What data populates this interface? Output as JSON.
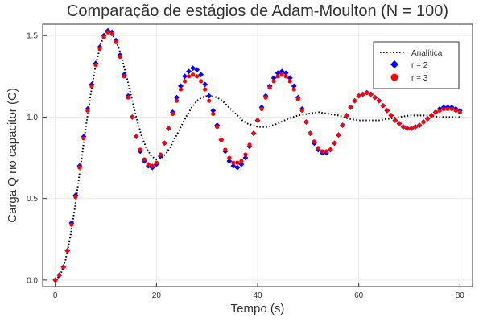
{
  "chart_data": {
    "type": "scatter",
    "title": "Comparação de estágios de Adam-Moulton (N = 100)",
    "xlabel": "Tempo (s)",
    "ylabel": "Carga Q no capacitor (C)",
    "xlim": [
      -2.5,
      82.5
    ],
    "ylim": [
      -0.04,
      1.57
    ],
    "xticks": [
      0,
      20,
      40,
      60,
      80
    ],
    "xtick_labels": [
      "0",
      "20",
      "40",
      "60",
      "80"
    ],
    "yticks": [
      0.0,
      0.5,
      1.0,
      1.5
    ],
    "ytick_labels": [
      "0.0",
      "0.5",
      "1.0",
      "1.5"
    ],
    "grid": true,
    "legend_position": "top-right",
    "series": [
      {
        "name": "Analítica",
        "style": "dotted-line",
        "color": "#000000",
        "x": [
          0,
          1,
          2,
          3,
          4,
          5,
          6,
          7,
          8,
          9,
          10,
          11,
          12,
          13,
          14,
          15,
          16,
          17,
          18,
          19,
          20,
          21,
          22,
          23,
          24,
          25,
          26,
          27,
          28,
          29,
          30,
          31,
          32,
          33,
          34,
          35,
          36,
          37,
          38,
          39,
          40,
          42,
          44,
          46,
          48,
          50,
          52,
          54,
          56,
          58,
          60,
          62,
          64,
          66,
          68,
          70,
          72,
          74,
          76,
          78,
          80
        ],
        "y": [
          0.0,
          0.03,
          0.12,
          0.27,
          0.47,
          0.7,
          0.93,
          1.14,
          1.32,
          1.45,
          1.52,
          1.52,
          1.47,
          1.38,
          1.26,
          1.13,
          1.0,
          0.89,
          0.81,
          0.76,
          0.74,
          0.75,
          0.78,
          0.83,
          0.89,
          0.95,
          1.01,
          1.06,
          1.1,
          1.12,
          1.13,
          1.13,
          1.12,
          1.1,
          1.07,
          1.04,
          1.01,
          0.98,
          0.96,
          0.95,
          0.94,
          0.94,
          0.96,
          0.99,
          1.01,
          1.02,
          1.03,
          1.02,
          1.01,
          0.99,
          0.98,
          0.98,
          0.98,
          0.99,
          1.0,
          1.01,
          1.01,
          1.01,
          1.0,
          1.0,
          1.0
        ]
      },
      {
        "name": "r = 2",
        "style": "diamond",
        "color": "#0000ff",
        "x": [
          0,
          0.8,
          1.6,
          2.4,
          3.2,
          4.0,
          4.8,
          5.6,
          6.4,
          7.2,
          8.0,
          8.8,
          9.6,
          10.4,
          11.2,
          12.0,
          12.8,
          13.6,
          14.4,
          15.2,
          16.0,
          16.8,
          17.6,
          18.4,
          19.2,
          20.0,
          20.8,
          21.6,
          22.4,
          23.2,
          24.0,
          24.8,
          25.6,
          26.4,
          27.2,
          28.0,
          28.8,
          29.6,
          30.4,
          31.2,
          32.0,
          32.8,
          33.6,
          34.4,
          35.2,
          36.0,
          36.8,
          37.6,
          38.4,
          39.2,
          40.0,
          40.8,
          41.6,
          42.4,
          43.2,
          44.0,
          44.8,
          45.6,
          46.4,
          47.2,
          48.0,
          48.8,
          49.6,
          50.4,
          51.2,
          52.0,
          52.8,
          53.6,
          54.4,
          55.2,
          56.0,
          56.8,
          57.6,
          58.4,
          59.2,
          60.0,
          60.8,
          61.6,
          62.4,
          63.2,
          64.0,
          64.8,
          65.6,
          66.4,
          67.2,
          68.0,
          68.8,
          69.6,
          70.4,
          71.2,
          72.0,
          72.8,
          73.6,
          74.4,
          75.2,
          76.0,
          76.8,
          77.6,
          78.4,
          79.2,
          80.0
        ],
        "y": [
          0.0,
          0.03,
          0.08,
          0.18,
          0.35,
          0.52,
          0.7,
          0.88,
          1.05,
          1.2,
          1.33,
          1.43,
          1.5,
          1.53,
          1.52,
          1.47,
          1.38,
          1.26,
          1.13,
          1.0,
          0.88,
          0.79,
          0.73,
          0.7,
          0.69,
          0.71,
          0.76,
          0.84,
          0.93,
          1.03,
          1.12,
          1.19,
          1.25,
          1.28,
          1.3,
          1.29,
          1.26,
          1.2,
          1.13,
          1.04,
          0.95,
          0.86,
          0.79,
          0.73,
          0.7,
          0.69,
          0.71,
          0.75,
          0.82,
          0.9,
          0.98,
          1.06,
          1.13,
          1.19,
          1.24,
          1.27,
          1.28,
          1.27,
          1.24,
          1.19,
          1.12,
          1.05,
          0.97,
          0.9,
          0.84,
          0.8,
          0.78,
          0.78,
          0.8,
          0.84,
          0.89,
          0.95,
          1.01,
          1.06,
          1.1,
          1.13,
          1.14,
          1.15,
          1.14,
          1.12,
          1.1,
          1.07,
          1.04,
          1.01,
          0.98,
          0.96,
          0.94,
          0.93,
          0.93,
          0.94,
          0.95,
          0.97,
          0.99,
          1.01,
          1.03,
          1.05,
          1.06,
          1.06,
          1.06,
          1.05,
          1.04
        ]
      },
      {
        "name": "r = 3",
        "style": "circle",
        "color": "#ff0000",
        "x": [
          0,
          0.8,
          1.6,
          2.4,
          3.2,
          4.0,
          4.8,
          5.6,
          6.4,
          7.2,
          8.0,
          8.8,
          9.6,
          10.4,
          11.2,
          12.0,
          12.8,
          13.6,
          14.4,
          15.2,
          16.0,
          16.8,
          17.6,
          18.4,
          19.2,
          20.0,
          20.8,
          21.6,
          22.4,
          23.2,
          24.0,
          24.8,
          25.6,
          26.4,
          27.2,
          28.0,
          28.8,
          29.6,
          30.4,
          31.2,
          32.0,
          32.8,
          33.6,
          34.4,
          35.2,
          36.0,
          36.8,
          37.6,
          38.4,
          39.2,
          40.0,
          40.8,
          41.6,
          42.4,
          43.2,
          44.0,
          44.8,
          45.6,
          46.4,
          47.2,
          48.0,
          48.8,
          49.6,
          50.4,
          51.2,
          52.0,
          52.8,
          53.6,
          54.4,
          55.2,
          56.0,
          56.8,
          57.6,
          58.4,
          59.2,
          60.0,
          60.8,
          61.6,
          62.4,
          63.2,
          64.0,
          64.8,
          65.6,
          66.4,
          67.2,
          68.0,
          68.8,
          69.6,
          70.4,
          71.2,
          72.0,
          72.8,
          73.6,
          74.4,
          75.2,
          76.0,
          76.8,
          77.6,
          78.4,
          79.2,
          80.0
        ],
        "y": [
          0.0,
          0.03,
          0.08,
          0.18,
          0.34,
          0.51,
          0.69,
          0.87,
          1.04,
          1.19,
          1.32,
          1.42,
          1.49,
          1.52,
          1.51,
          1.46,
          1.37,
          1.25,
          1.12,
          1.0,
          0.88,
          0.8,
          0.74,
          0.71,
          0.7,
          0.72,
          0.77,
          0.84,
          0.93,
          1.02,
          1.1,
          1.17,
          1.22,
          1.25,
          1.26,
          1.25,
          1.22,
          1.17,
          1.1,
          1.02,
          0.94,
          0.86,
          0.8,
          0.75,
          0.72,
          0.72,
          0.73,
          0.77,
          0.83,
          0.9,
          0.98,
          1.05,
          1.12,
          1.18,
          1.22,
          1.25,
          1.26,
          1.25,
          1.22,
          1.17,
          1.11,
          1.04,
          0.97,
          0.9,
          0.85,
          0.81,
          0.79,
          0.79,
          0.8,
          0.84,
          0.89,
          0.95,
          1.01,
          1.06,
          1.1,
          1.13,
          1.14,
          1.15,
          1.14,
          1.12,
          1.1,
          1.07,
          1.04,
          1.01,
          0.98,
          0.96,
          0.94,
          0.93,
          0.93,
          0.94,
          0.95,
          0.97,
          0.99,
          1.01,
          1.03,
          1.04,
          1.05,
          1.05,
          1.05,
          1.04,
          1.03
        ]
      }
    ]
  }
}
